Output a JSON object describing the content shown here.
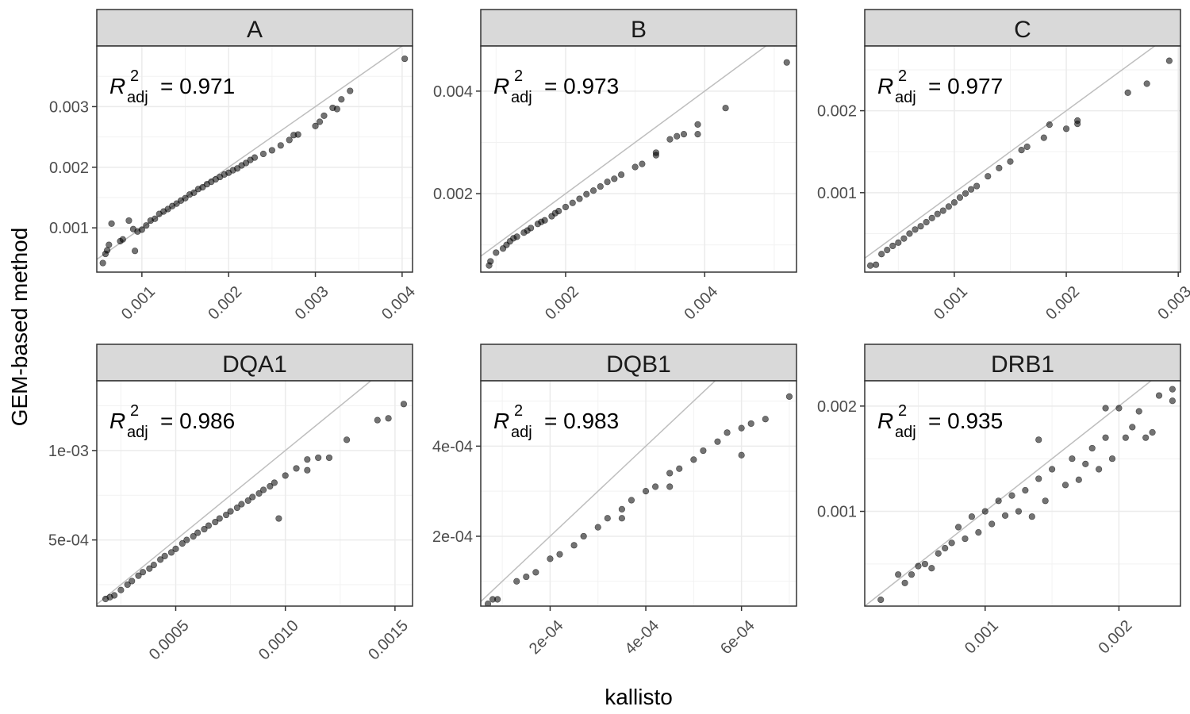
{
  "figure": {
    "xlabel": "kallisto",
    "ylabel": "GEM-based method"
  },
  "colors": {
    "point": "#000000",
    "reference_line": "#bebebe",
    "strip_background": "#d9d9d9",
    "grid": "#ebebeb",
    "frame": "#333333"
  },
  "chart_data": [
    {
      "type": "scatter",
      "title": "A",
      "annotation": {
        "symbol": "R",
        "superscript": "2",
        "subscript": "adj",
        "value": "= 0.971"
      },
      "xlim": [
        0.00048,
        0.00412
      ],
      "ylim": [
        0.00027,
        0.004
      ],
      "x_ticks": [
        0.001,
        0.002,
        0.003,
        0.004
      ],
      "x_tick_labels": [
        "0.001",
        "0.002",
        "0.003",
        "0.004"
      ],
      "y_ticks": [
        0.001,
        0.002,
        0.003
      ],
      "y_tick_labels": [
        "0.001",
        "0.002",
        "0.003"
      ],
      "reference_line": "y = x",
      "points": [
        [
          0.00055,
          0.00042
        ],
        [
          0.00058,
          0.00057
        ],
        [
          0.0006,
          0.00063
        ],
        [
          0.00062,
          0.00072
        ],
        [
          0.00065,
          0.00107
        ],
        [
          0.00075,
          0.00078
        ],
        [
          0.00078,
          0.00081
        ],
        [
          0.00085,
          0.00112
        ],
        [
          0.0009,
          0.00098
        ],
        [
          0.00092,
          0.00062
        ],
        [
          0.00095,
          0.00094
        ],
        [
          0.001,
          0.00097
        ],
        [
          0.00105,
          0.00104
        ],
        [
          0.0011,
          0.00112
        ],
        [
          0.00115,
          0.00115
        ],
        [
          0.0012,
          0.00123
        ],
        [
          0.00125,
          0.00127
        ],
        [
          0.0013,
          0.00131
        ],
        [
          0.00135,
          0.00136
        ],
        [
          0.0014,
          0.0014
        ],
        [
          0.00145,
          0.00145
        ],
        [
          0.0015,
          0.00149
        ],
        [
          0.00155,
          0.00155
        ],
        [
          0.0016,
          0.00158
        ],
        [
          0.00165,
          0.00164
        ],
        [
          0.0017,
          0.00167
        ],
        [
          0.00175,
          0.00172
        ],
        [
          0.0018,
          0.00176
        ],
        [
          0.00185,
          0.0018
        ],
        [
          0.0019,
          0.00184
        ],
        [
          0.00195,
          0.00188
        ],
        [
          0.002,
          0.00191
        ],
        [
          0.00205,
          0.00195
        ],
        [
          0.0021,
          0.00198
        ],
        [
          0.00215,
          0.00203
        ],
        [
          0.0022,
          0.00207
        ],
        [
          0.00225,
          0.00212
        ],
        [
          0.0023,
          0.00216
        ],
        [
          0.0024,
          0.00222
        ],
        [
          0.0025,
          0.00228
        ],
        [
          0.0026,
          0.00236
        ],
        [
          0.0027,
          0.00245
        ],
        [
          0.00275,
          0.00253
        ],
        [
          0.0028,
          0.00254
        ],
        [
          0.003,
          0.00268
        ],
        [
          0.00305,
          0.00275
        ],
        [
          0.0031,
          0.00285
        ],
        [
          0.0032,
          0.00298
        ],
        [
          0.00325,
          0.00296
        ],
        [
          0.0033,
          0.00312
        ],
        [
          0.0034,
          0.00326
        ],
        [
          0.00403,
          0.00379
        ]
      ]
    },
    {
      "type": "scatter",
      "title": "B",
      "annotation": {
        "symbol": "R",
        "superscript": "2",
        "subscript": "adj",
        "value": "= 0.973"
      },
      "xlim": [
        0.00078,
        0.00532
      ],
      "ylim": [
        0.00047,
        0.00488
      ],
      "x_ticks": [
        0.002,
        0.004
      ],
      "x_tick_labels": [
        "0.002",
        "0.004"
      ],
      "y_ticks": [
        0.002,
        0.004
      ],
      "y_tick_labels": [
        "0.002",
        "0.004"
      ],
      "reference_line": "y = x",
      "points": [
        [
          0.0009,
          0.0006
        ],
        [
          0.00092,
          0.00068
        ],
        [
          0.001,
          0.00085
        ],
        [
          0.0011,
          0.00093
        ],
        [
          0.00115,
          0.001
        ],
        [
          0.0012,
          0.00107
        ],
        [
          0.00125,
          0.00113
        ],
        [
          0.0013,
          0.00116
        ],
        [
          0.0014,
          0.00124
        ],
        [
          0.00145,
          0.00128
        ],
        [
          0.0015,
          0.00133
        ],
        [
          0.0016,
          0.00141
        ],
        [
          0.00165,
          0.00145
        ],
        [
          0.0017,
          0.00148
        ],
        [
          0.0018,
          0.00156
        ],
        [
          0.00185,
          0.00162
        ],
        [
          0.0019,
          0.00166
        ],
        [
          0.002,
          0.00174
        ],
        [
          0.0021,
          0.00182
        ],
        [
          0.0022,
          0.0019
        ],
        [
          0.0023,
          0.00199
        ],
        [
          0.0024,
          0.00206
        ],
        [
          0.0025,
          0.00214
        ],
        [
          0.0026,
          0.00223
        ],
        [
          0.0027,
          0.00229
        ],
        [
          0.0028,
          0.00237
        ],
        [
          0.003,
          0.00252
        ],
        [
          0.0031,
          0.00258
        ],
        [
          0.0033,
          0.00275
        ],
        [
          0.0033,
          0.0028
        ],
        [
          0.0035,
          0.00306
        ],
        [
          0.0036,
          0.00312
        ],
        [
          0.0037,
          0.00316
        ],
        [
          0.0039,
          0.00316
        ],
        [
          0.0039,
          0.00335
        ],
        [
          0.0043,
          0.00367
        ],
        [
          0.00518,
          0.00456
        ]
      ]
    },
    {
      "type": "scatter",
      "title": "C",
      "annotation": {
        "symbol": "R",
        "superscript": "2",
        "subscript": "adj",
        "value": "= 0.977"
      },
      "xlim": [
        0.0002,
        0.00302
      ],
      "ylim": [
        3e-05,
        0.00279
      ],
      "x_ticks": [
        0.001,
        0.002,
        0.003
      ],
      "x_tick_labels": [
        "0.001",
        "0.002",
        "0.003"
      ],
      "y_ticks": [
        0.001,
        0.002
      ],
      "y_tick_labels": [
        "0.001",
        "0.002"
      ],
      "reference_line": "y = x",
      "points": [
        [
          0.00025,
          0.00011
        ],
        [
          0.0003,
          0.00012
        ],
        [
          0.00035,
          0.00025
        ],
        [
          0.0004,
          0.0003
        ],
        [
          0.00045,
          0.00035
        ],
        [
          0.0005,
          0.00039
        ],
        [
          0.00055,
          0.00044
        ],
        [
          0.0006,
          0.0005
        ],
        [
          0.00065,
          0.00055
        ],
        [
          0.0007,
          0.00059
        ],
        [
          0.00075,
          0.00064
        ],
        [
          0.0008,
          0.00069
        ],
        [
          0.00085,
          0.00074
        ],
        [
          0.0009,
          0.00078
        ],
        [
          0.00095,
          0.00083
        ],
        [
          0.001,
          0.00088
        ],
        [
          0.00105,
          0.00094
        ],
        [
          0.0011,
          0.00099
        ],
        [
          0.00115,
          0.00104
        ],
        [
          0.0012,
          0.00108
        ],
        [
          0.0013,
          0.0012
        ],
        [
          0.0014,
          0.0013
        ],
        [
          0.0015,
          0.00138
        ],
        [
          0.0016,
          0.00152
        ],
        [
          0.00165,
          0.00156
        ],
        [
          0.0018,
          0.00167
        ],
        [
          0.00185,
          0.00183
        ],
        [
          0.002,
          0.00178
        ],
        [
          0.0021,
          0.00188
        ],
        [
          0.0021,
          0.00184
        ],
        [
          0.00255,
          0.00222
        ],
        [
          0.00272,
          0.00233
        ],
        [
          0.00292,
          0.00261
        ]
      ]
    },
    {
      "type": "scatter",
      "title": "DQA1",
      "annotation": {
        "symbol": "R",
        "superscript": "2",
        "subscript": "adj",
        "value": "= 0.986"
      },
      "xlim": [
        0.00014,
        0.00158
      ],
      "ylim": [
        0.00013,
        0.00139
      ],
      "x_ticks": [
        0.0005,
        0.001,
        0.0015
      ],
      "x_tick_labels": [
        "0.0005",
        "0.0010",
        "0.0015"
      ],
      "y_ticks": [
        0.0005,
        0.001
      ],
      "y_tick_labels": [
        "5e-04",
        "1e-03"
      ],
      "reference_line": "y = x",
      "points": [
        [
          0.00018,
          0.00017
        ],
        [
          0.0002,
          0.00018
        ],
        [
          0.00022,
          0.00019
        ],
        [
          0.00025,
          0.00022
        ],
        [
          0.00028,
          0.00025
        ],
        [
          0.0003,
          0.00027
        ],
        [
          0.00033,
          0.0003
        ],
        [
          0.00035,
          0.00032
        ],
        [
          0.00038,
          0.00034
        ],
        [
          0.0004,
          0.00036
        ],
        [
          0.00043,
          0.00039
        ],
        [
          0.00045,
          0.00041
        ],
        [
          0.00048,
          0.00043
        ],
        [
          0.0005,
          0.00045
        ],
        [
          0.00053,
          0.00048
        ],
        [
          0.00055,
          0.0005
        ],
        [
          0.00058,
          0.00052
        ],
        [
          0.0006,
          0.00054
        ],
        [
          0.00063,
          0.00056
        ],
        [
          0.00065,
          0.00058
        ],
        [
          0.00068,
          0.0006
        ],
        [
          0.0007,
          0.00062
        ],
        [
          0.00073,
          0.00064
        ],
        [
          0.00075,
          0.00066
        ],
        [
          0.00078,
          0.00068
        ],
        [
          0.0008,
          0.0007
        ],
        [
          0.00083,
          0.00072
        ],
        [
          0.00085,
          0.00074
        ],
        [
          0.00088,
          0.00076
        ],
        [
          0.0009,
          0.00078
        ],
        [
          0.00093,
          0.0008
        ],
        [
          0.00095,
          0.00082
        ],
        [
          0.001,
          0.00086
        ],
        [
          0.00105,
          0.0009
        ],
        [
          0.0011,
          0.00095
        ],
        [
          0.0011,
          0.00089
        ],
        [
          0.00115,
          0.00096
        ],
        [
          0.0012,
          0.00096
        ],
        [
          0.00128,
          0.00106
        ],
        [
          0.00142,
          0.00117
        ],
        [
          0.00147,
          0.00118
        ],
        [
          0.00154,
          0.00126
        ],
        [
          0.00097,
          0.00062
        ]
      ]
    },
    {
      "type": "scatter",
      "title": "DQB1",
      "annotation": {
        "symbol": "R",
        "superscript": "2",
        "subscript": "adj",
        "value": "= 0.983"
      },
      "xlim": [
        5.5e-05,
        0.000715
      ],
      "ylim": [
        4.5e-05,
        0.000545
      ],
      "x_ticks": [
        0.0002,
        0.0004,
        0.0006
      ],
      "x_tick_labels": [
        "2e-04",
        "4e-04",
        "6e-04"
      ],
      "y_ticks": [
        0.0002,
        0.0004
      ],
      "y_tick_labels": [
        "2e-04",
        "4e-04"
      ],
      "reference_line": "y = x",
      "points": [
        [
          7e-05,
          5e-05
        ],
        [
          8e-05,
          6e-05
        ],
        [
          9e-05,
          6e-05
        ],
        [
          0.00013,
          0.0001
        ],
        [
          0.00015,
          0.00011
        ],
        [
          0.00017,
          0.00012
        ],
        [
          0.0002,
          0.00015
        ],
        [
          0.00022,
          0.00016
        ],
        [
          0.00025,
          0.00018
        ],
        [
          0.00027,
          0.0002
        ],
        [
          0.0003,
          0.00022
        ],
        [
          0.00032,
          0.00024
        ],
        [
          0.00035,
          0.00026
        ],
        [
          0.00037,
          0.00028
        ],
        [
          0.0004,
          0.0003
        ],
        [
          0.00042,
          0.00031
        ],
        [
          0.00045,
          0.00034
        ],
        [
          0.00047,
          0.00035
        ],
        [
          0.0005,
          0.00037
        ],
        [
          0.00052,
          0.00039
        ],
        [
          0.00055,
          0.00041
        ],
        [
          0.00057,
          0.00043
        ],
        [
          0.0006,
          0.00044
        ],
        [
          0.0006,
          0.00038
        ],
        [
          0.00062,
          0.00045
        ],
        [
          0.00065,
          0.00046
        ],
        [
          0.0007,
          0.00051
        ],
        [
          0.00035,
          0.00024
        ],
        [
          0.00045,
          0.00031
        ]
      ]
    },
    {
      "type": "scatter",
      "title": "DRB1",
      "annotation": {
        "symbol": "R",
        "superscript": "2",
        "subscript": "adj",
        "value": "= 0.935"
      },
      "xlim": [
        0.0001,
        0.00246
      ],
      "ylim": [
        0.0001,
        0.00224
      ],
      "x_ticks": [
        0.001,
        0.002
      ],
      "x_tick_labels": [
        "0.001",
        "0.002"
      ],
      "y_ticks": [
        0.001,
        0.002
      ],
      "y_tick_labels": [
        "0.001",
        "0.002"
      ],
      "reference_line": "y = x",
      "points": [
        [
          0.00022,
          0.00016
        ],
        [
          0.00035,
          0.0004
        ],
        [
          0.0004,
          0.00032
        ],
        [
          0.00045,
          0.0004
        ],
        [
          0.0005,
          0.00048
        ],
        [
          0.00055,
          0.0005
        ],
        [
          0.0006,
          0.00046
        ],
        [
          0.00065,
          0.0006
        ],
        [
          0.0007,
          0.00065
        ],
        [
          0.00075,
          0.0007
        ],
        [
          0.0008,
          0.00085
        ],
        [
          0.00085,
          0.00074
        ],
        [
          0.0009,
          0.00095
        ],
        [
          0.00095,
          0.0008
        ],
        [
          0.001,
          0.001
        ],
        [
          0.00105,
          0.00088
        ],
        [
          0.0011,
          0.0011
        ],
        [
          0.00115,
          0.00096
        ],
        [
          0.0012,
          0.00115
        ],
        [
          0.00125,
          0.001
        ],
        [
          0.0013,
          0.0012
        ],
        [
          0.00135,
          0.00095
        ],
        [
          0.0014,
          0.00131
        ],
        [
          0.00145,
          0.0011
        ],
        [
          0.0015,
          0.0014
        ],
        [
          0.0016,
          0.00125
        ],
        [
          0.00165,
          0.0015
        ],
        [
          0.0017,
          0.0013
        ],
        [
          0.00175,
          0.00145
        ],
        [
          0.0018,
          0.0016
        ],
        [
          0.00185,
          0.0014
        ],
        [
          0.0019,
          0.0017
        ],
        [
          0.00195,
          0.0015
        ],
        [
          0.002,
          0.00198
        ],
        [
          0.00205,
          0.0017
        ],
        [
          0.0021,
          0.0018
        ],
        [
          0.00215,
          0.00195
        ],
        [
          0.0022,
          0.0017
        ],
        [
          0.00225,
          0.00175
        ],
        [
          0.0023,
          0.0021
        ],
        [
          0.0024,
          0.00216
        ],
        [
          0.0024,
          0.00205
        ],
        [
          0.0019,
          0.00198
        ],
        [
          0.0014,
          0.00168
        ]
      ]
    }
  ]
}
